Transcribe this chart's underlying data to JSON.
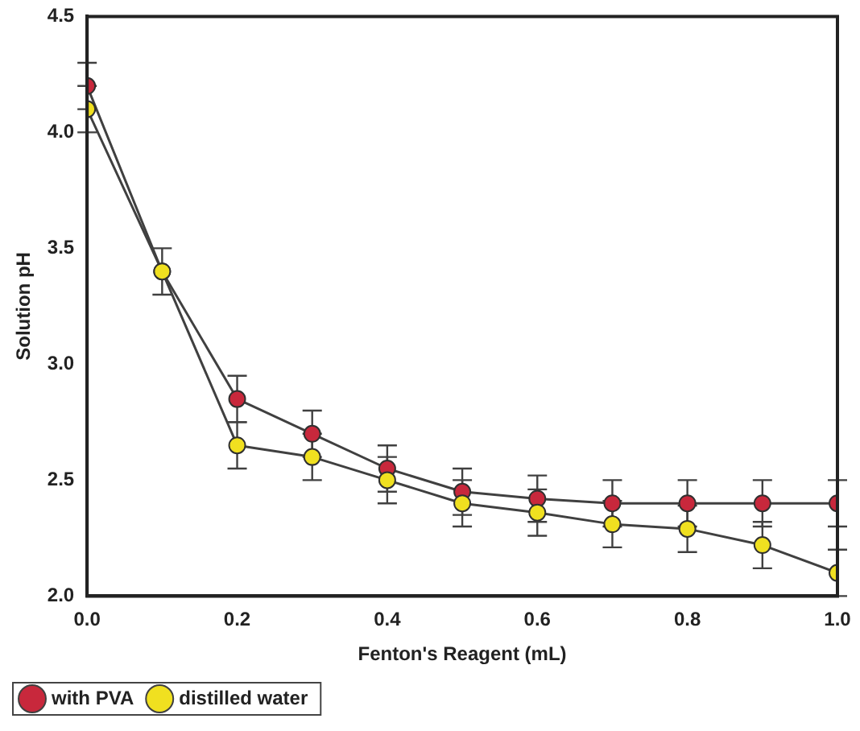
{
  "chart_data": {
    "type": "line",
    "xlabel": "Fenton's Reagent (mL)",
    "ylabel": "Solution pH",
    "x": [
      0.0,
      0.1,
      0.2,
      0.3,
      0.4,
      0.5,
      0.6,
      0.7,
      0.8,
      0.9,
      1.0
    ],
    "series": [
      {
        "name": "with PVA",
        "color": "#c8283c",
        "values": [
          4.2,
          3.4,
          2.85,
          2.7,
          2.55,
          2.45,
          2.42,
          2.4,
          2.4,
          2.4,
          2.4
        ],
        "errors": [
          0.1,
          null,
          0.1,
          0.1,
          0.1,
          0.1,
          0.1,
          0.1,
          0.1,
          0.1,
          0.1
        ]
      },
      {
        "name": "distilled water",
        "color": "#f0e020",
        "values": [
          4.1,
          3.4,
          2.65,
          2.6,
          2.5,
          2.4,
          2.36,
          2.31,
          2.29,
          2.22,
          2.1
        ],
        "errors": [
          0.1,
          0.1,
          0.1,
          0.1,
          0.1,
          0.1,
          0.1,
          0.1,
          0.1,
          0.1,
          0.1
        ]
      }
    ],
    "xlim": [
      0,
      1
    ],
    "xticks": [
      {
        "value": 0,
        "label": "0.0"
      },
      0.2,
      0.4,
      0.6,
      0.8,
      {
        "value": 1,
        "label": "1.0"
      }
    ],
    "ylim": [
      2,
      4.5
    ],
    "yticks": [
      {
        "value": 2,
        "label": "2.0"
      },
      2.5,
      {
        "value": 3,
        "label": "3.0"
      },
      3.5,
      {
        "value": 4,
        "label": "4.0"
      },
      4.5
    ],
    "grid": false,
    "legend": "bottom left",
    "marker": "circle",
    "line_style": "solid"
  }
}
